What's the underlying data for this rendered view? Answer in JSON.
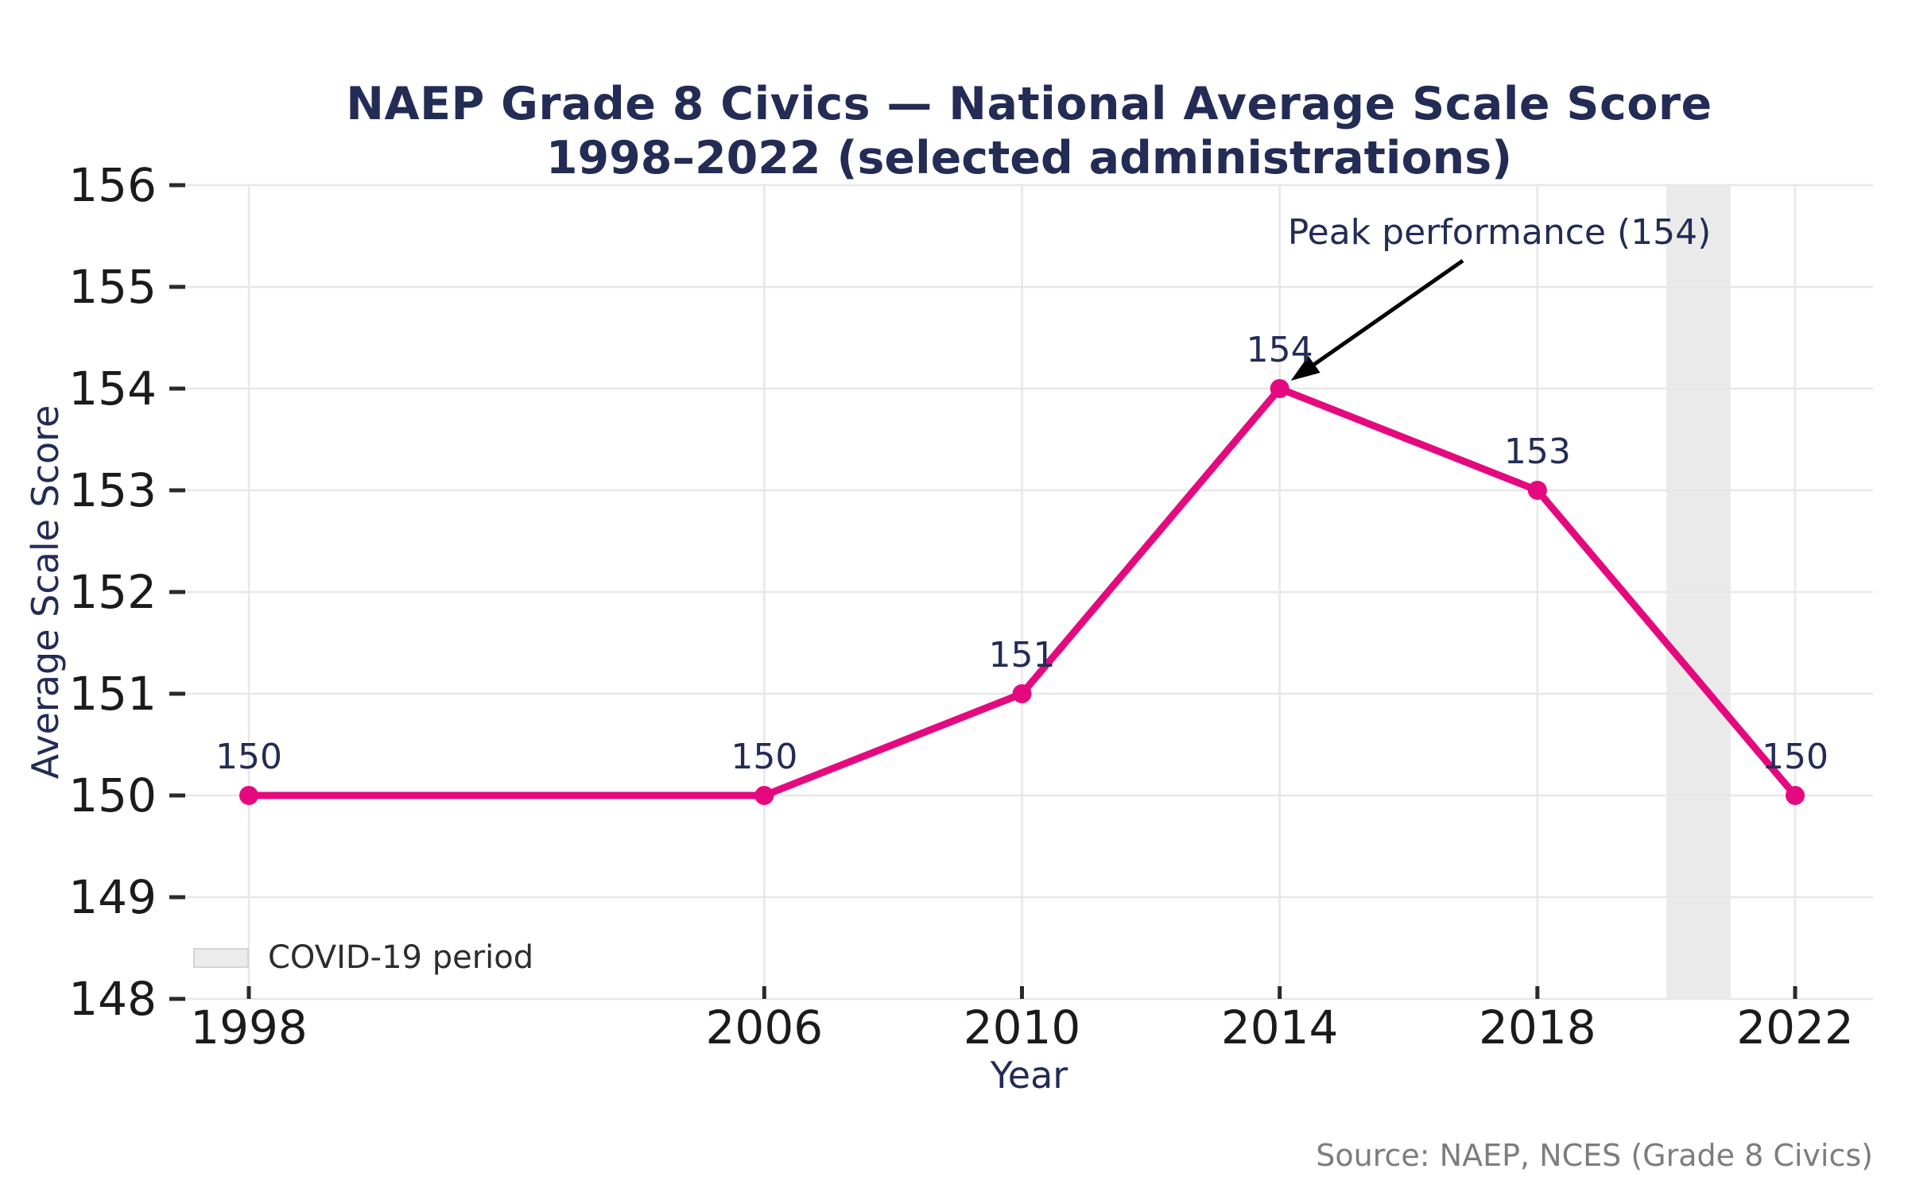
{
  "title": {
    "line1": "NAEP Grade 8 Civics — National Average Scale Score",
    "line2": "1998–2022 (selected administrations)"
  },
  "chart_data": {
    "type": "line",
    "x": [
      1998,
      2006,
      2010,
      2014,
      2018,
      2022
    ],
    "values": [
      150,
      150,
      151,
      154,
      153,
      150
    ],
    "data_labels": [
      "150",
      "150",
      "151",
      "154",
      "153",
      "150"
    ],
    "xlabel": "Year",
    "ylabel": "Average Scale Score",
    "xticks": [
      1998,
      2006,
      2010,
      2014,
      2018,
      2022
    ],
    "yticks": [
      148,
      149,
      150,
      151,
      152,
      153,
      154,
      155,
      156
    ],
    "xlim": [
      1997,
      2023.2
    ],
    "ylim": [
      148,
      156
    ],
    "grid": true,
    "legend_position": "lower left",
    "annotation": {
      "text": "Peak performance (154)",
      "target_year": 2014,
      "target_value": 154
    },
    "covid_band": {
      "x_start": 2020,
      "x_end": 2021,
      "label": "COVID-19 period"
    },
    "colors": {
      "line": "#e5097f",
      "marker": "#e5097f",
      "band": "#eaeaea",
      "grid": "#e7e7e7",
      "navy_text": "#232c55",
      "tick_text": "#1b1b1b",
      "tick_mark": "#2a2a2a",
      "arrow": "#000000"
    }
  },
  "legend": {
    "covid_label": "COVID-19 period"
  },
  "source": {
    "text": "Source: NAEP, NCES (Grade 8 Civics)"
  }
}
